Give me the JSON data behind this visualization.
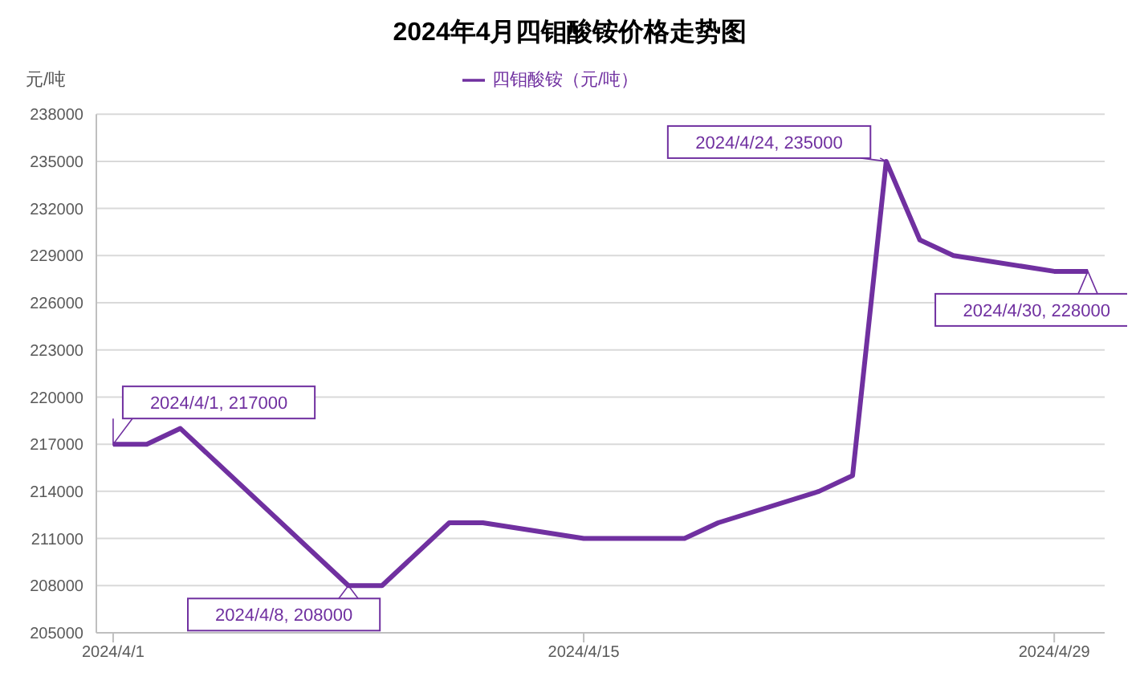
{
  "chart_data": {
    "type": "line",
    "title": "2024年4月四钼酸铵价格走势图",
    "ylabel": "元/吨",
    "x": [
      "2024-04-01",
      "2024-04-02",
      "2024-04-03",
      "2024-04-08",
      "2024-04-09",
      "2024-04-10",
      "2024-04-11",
      "2024-04-12",
      "2024-04-15",
      "2024-04-16",
      "2024-04-17",
      "2024-04-18",
      "2024-04-19",
      "2024-04-22",
      "2024-04-23",
      "2024-04-24",
      "2024-04-25",
      "2024-04-26",
      "2024-04-29",
      "2024-04-30"
    ],
    "series": [
      {
        "name": "四钼酸铵（元/吨）",
        "color": "#7030a0",
        "values": [
          217000,
          217000,
          218000,
          208000,
          208000,
          210000,
          212000,
          212000,
          211000,
          211000,
          211000,
          211000,
          212000,
          214000,
          215000,
          235000,
          230000,
          229000,
          228000,
          228000
        ]
      }
    ],
    "xlim": [
      "2024-03-31T12:00",
      "2024-04-30T12:00"
    ],
    "xticks": [
      {
        "value": "2024-04-01",
        "label": "2024/4/1"
      },
      {
        "value": "2024-04-15",
        "label": "2024/4/15"
      },
      {
        "value": "2024-04-29",
        "label": "2024/4/29"
      }
    ],
    "ylim": [
      205000,
      238000
    ],
    "yticks": [
      205000,
      208000,
      211000,
      214000,
      217000,
      220000,
      223000,
      226000,
      229000,
      232000,
      235000,
      238000
    ],
    "grid": "y",
    "legend": "top",
    "marker": "none",
    "line_style": "solid",
    "annotations": [
      {
        "text": "2024/4/1, 217000",
        "x": "2024-04-01",
        "y": 217000
      },
      {
        "text": "2024/4/8, 208000",
        "x": "2024-04-08",
        "y": 208000
      },
      {
        "text": "2024/4/24, 235000",
        "x": "2024-04-24",
        "y": 235000
      },
      {
        "text": "2024/4/30, 228000",
        "x": "2024-04-30",
        "y": 228000
      }
    ]
  }
}
